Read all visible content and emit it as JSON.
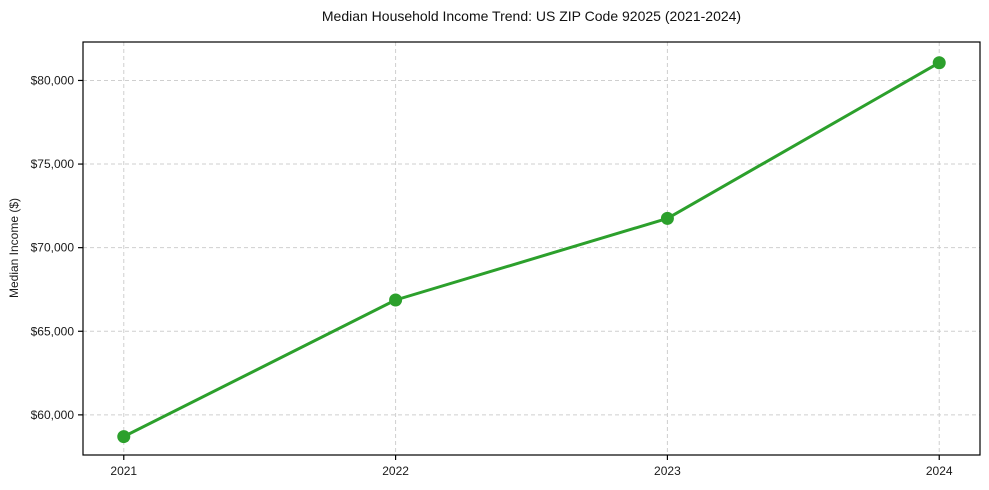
{
  "page": {
    "background": "#ffffff"
  },
  "chart_data": {
    "type": "line",
    "title": "Median Household Income Trend: US ZIP Code 92025 (2021-2024)",
    "xlabel": "",
    "ylabel": "Median Income ($)",
    "categories": [
      2021,
      2022,
      2023,
      2024
    ],
    "xtick_labels": [
      "2021",
      "2022",
      "2023",
      "2024"
    ],
    "values": [
      58700,
      66870,
      71750,
      81060
    ],
    "series_name": "Median Household Income",
    "line_color": "#2ca02c",
    "marker": "circle",
    "marker_radius": 6.5,
    "line_width": 3,
    "xlim": [
      2020.85,
      2024.15
    ],
    "ylim": [
      57600,
      82300
    ],
    "yticks": [
      60000,
      65000,
      70000,
      75000,
      80000
    ],
    "ytick_labels": [
      "$60,000",
      "$65,000",
      "$70,000",
      "$75,000",
      "$80,000"
    ],
    "grid": {
      "visible": true,
      "style": "dashed",
      "color": "#cfcfcf",
      "dash": "4 3"
    },
    "frame_color": "#000000",
    "legend": "none"
  }
}
